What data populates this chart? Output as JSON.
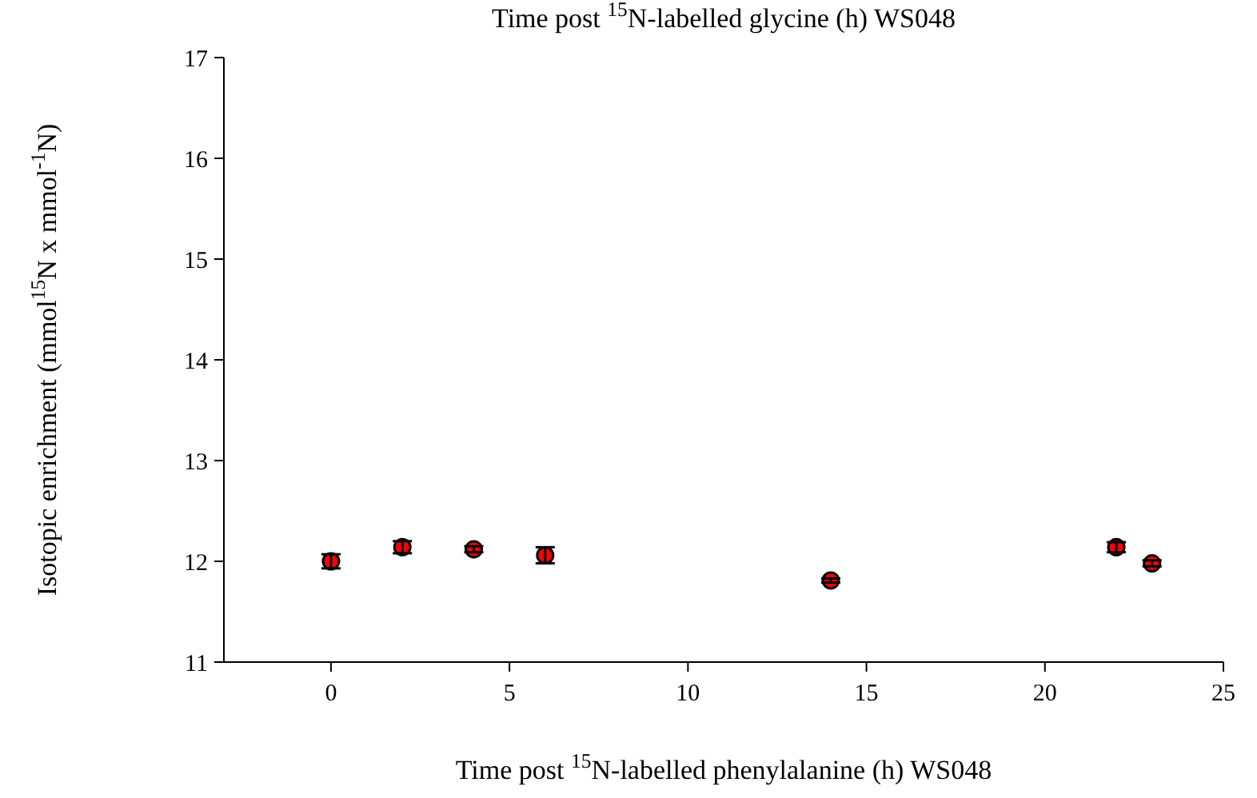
{
  "chart_data": {
    "type": "scatter",
    "title": "Time post $^{15}$N-labelled glycine (h)    WS048",
    "xlabel": "Time post $^{15}$N-labelled phenylalanine (h)    WS048",
    "ylabel": "Isotopic enrichment (mmol$^{15}$N x mmol$^{-1}$N)",
    "x": [
      0,
      2,
      4,
      6,
      14,
      22,
      23
    ],
    "series": [
      {
        "color": "#ff0000",
        "values": [
          12.0,
          12.14,
          12.12,
          12.06,
          11.81,
          12.14,
          11.98
        ],
        "errors": [
          0.07,
          0.06,
          0.03,
          0.08,
          0.02,
          0.05,
          0.03
        ]
      }
    ],
    "xlim": [
      -3,
      25
    ],
    "xticks": [
      0,
      5,
      10,
      15,
      20,
      25
    ],
    "ylim": [
      11,
      17
    ],
    "yticks": [
      11,
      12,
      13,
      14,
      15,
      16,
      17
    ],
    "marker": "circle",
    "grid": false
  }
}
